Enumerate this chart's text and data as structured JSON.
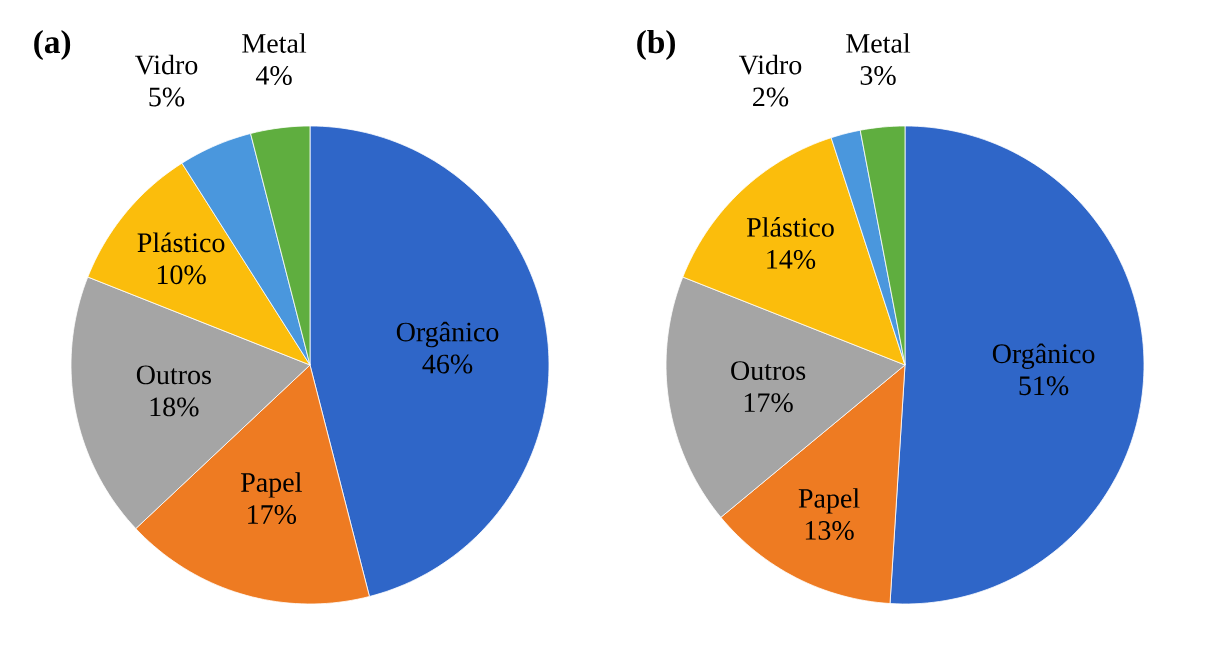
{
  "chart_data": [
    {
      "type": "pie",
      "title": "(a)",
      "categories": [
        "Orgânico",
        "Papel",
        "Outros",
        "Plástico",
        "Vidro",
        "Metal"
      ],
      "values": [
        46,
        17,
        18,
        10,
        5,
        4
      ],
      "value_labels": [
        "46%",
        "17%",
        "18%",
        "10%",
        "5%",
        "4%"
      ],
      "colors": [
        "#2f66c8",
        "#ee7b22",
        "#a5a5a5",
        "#fbbd0c",
        "#4a97dd",
        "#5fae3f"
      ]
    },
    {
      "type": "pie",
      "title": "(b)",
      "categories": [
        "Orgânico",
        "Papel",
        "Outros",
        "Plástico",
        "Vidro",
        "Metal"
      ],
      "values": [
        51,
        13,
        17,
        14,
        2,
        3
      ],
      "value_labels": [
        "51%",
        "13%",
        "17%",
        "14%",
        "2%",
        "3%"
      ],
      "colors": [
        "#2f66c8",
        "#ee7b22",
        "#a5a5a5",
        "#fbbd0c",
        "#4a97dd",
        "#5fae3f"
      ]
    }
  ]
}
